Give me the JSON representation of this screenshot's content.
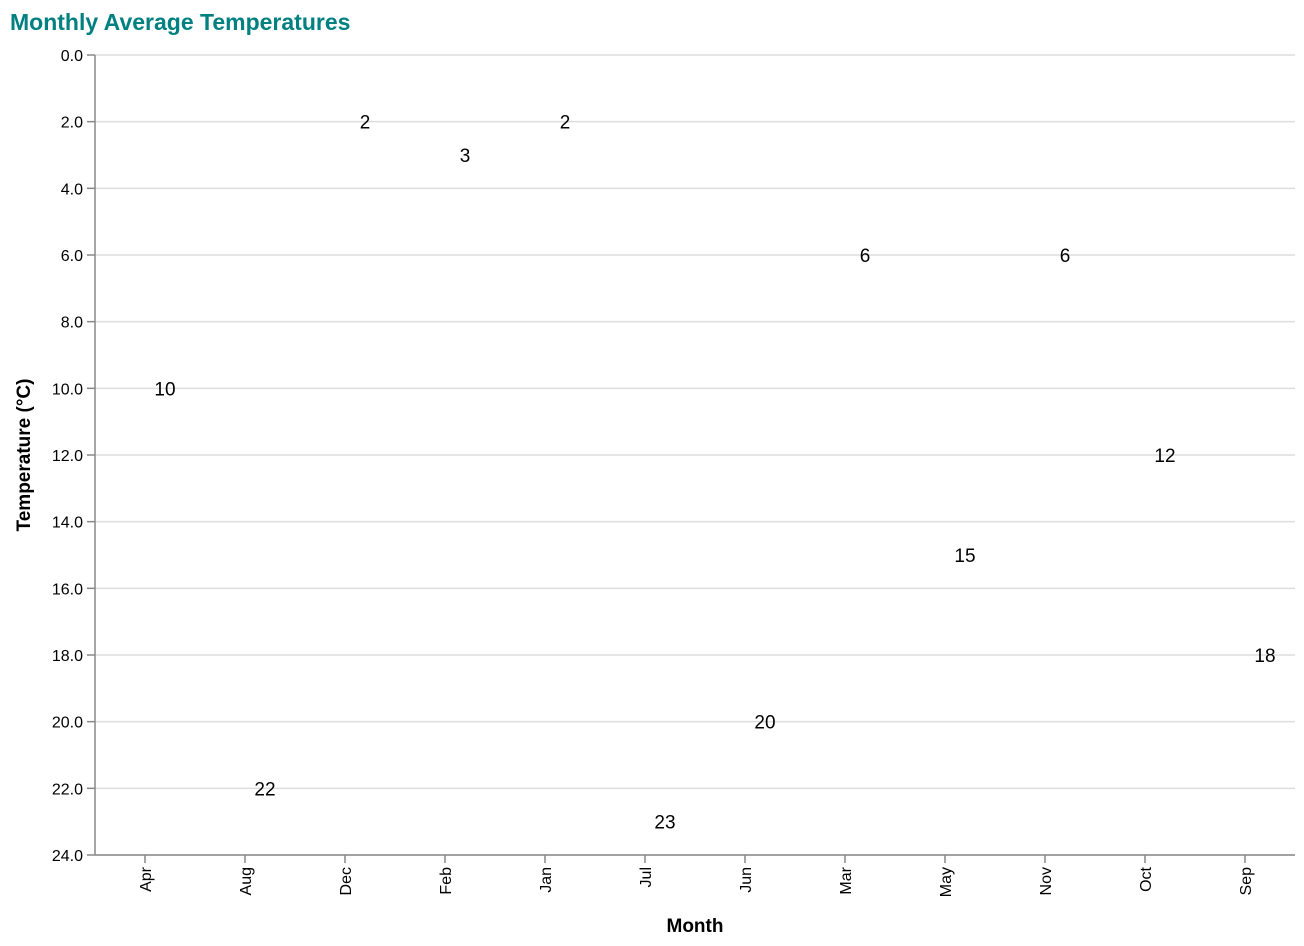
{
  "chart_data": {
    "type": "text",
    "title": "Monthly Average Temperatures",
    "xlabel": "Month",
    "ylabel": "Temperature (°C)",
    "categories": [
      "Apr",
      "Aug",
      "Dec",
      "Feb",
      "Jan",
      "Jul",
      "Jun",
      "Mar",
      "May",
      "Nov",
      "Oct",
      "Sep"
    ],
    "values": [
      10,
      22,
      2,
      3,
      2,
      23,
      20,
      6,
      15,
      6,
      12,
      18
    ],
    "y_ticks": [
      "0.0",
      "2.0",
      "4.0",
      "6.0",
      "8.0",
      "10.0",
      "12.0",
      "14.0",
      "16.0",
      "18.0",
      "20.0",
      "22.0",
      "24.0"
    ],
    "ylim": [
      0,
      24
    ],
    "y_reversed": true,
    "grid": true,
    "colors": {
      "title": "#008080",
      "grid": "#dddddd",
      "axis": "#888888",
      "text": "#000000"
    }
  }
}
